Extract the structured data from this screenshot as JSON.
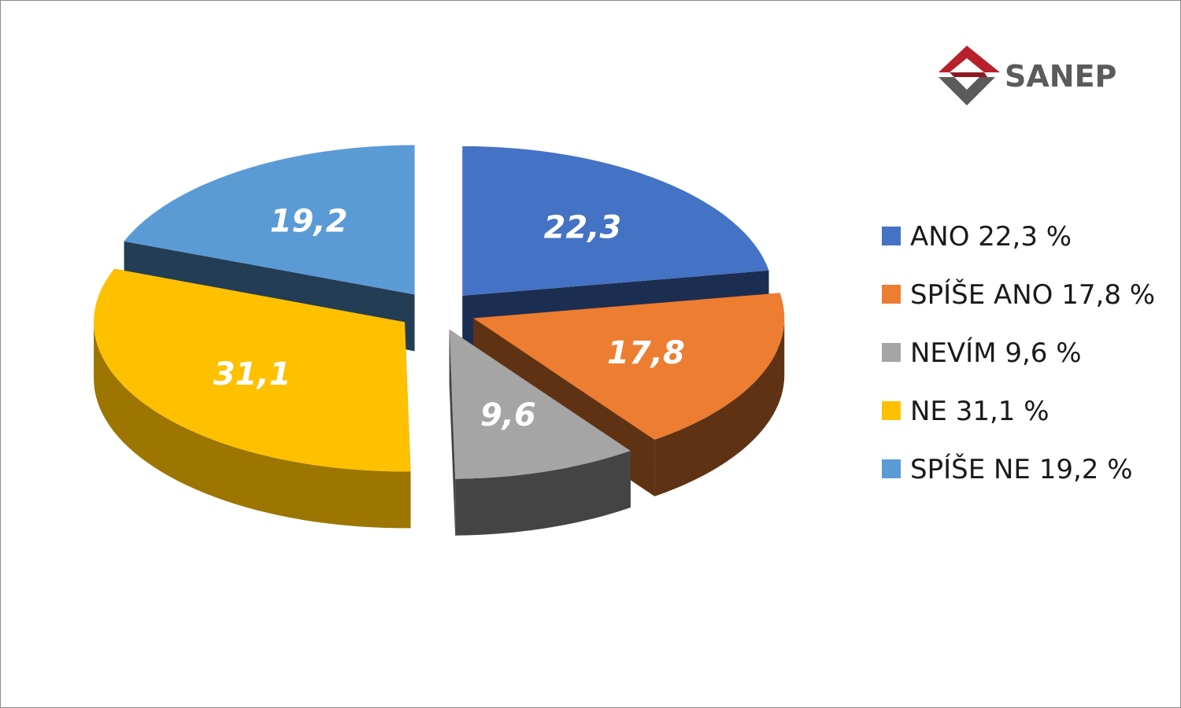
{
  "logo": {
    "text": "SANEP",
    "mark_colors": {
      "red": "#b8202b",
      "gray": "#5b5b5b"
    }
  },
  "chart_data": {
    "type": "pie",
    "style": "3d-exploded",
    "legend_position": "right",
    "slices": [
      {
        "label": "22,3",
        "legend": "ANO 22,3 %",
        "value": 22.3,
        "color": "#4472c4",
        "side": "#1c2d52"
      },
      {
        "label": "17,8",
        "legend": "SPÍŠE ANO 17,8 %",
        "value": 17.8,
        "color": "#ed7d31",
        "side": "#5f3214"
      },
      {
        "label": "9,6",
        "legend": "NEVÍM 9,6 %",
        "value": 9.6,
        "color": "#a5a5a5",
        "side": "#444444"
      },
      {
        "label": "31,1",
        "legend": "NE 31,1 %",
        "value": 31.1,
        "color": "#ffc000",
        "side": "#9c7600"
      },
      {
        "label": "19,2",
        "legend": "SPÍŠE NE 19,2 %",
        "value": 19.2,
        "color": "#5b9bd5",
        "side": "#233d55"
      }
    ]
  }
}
